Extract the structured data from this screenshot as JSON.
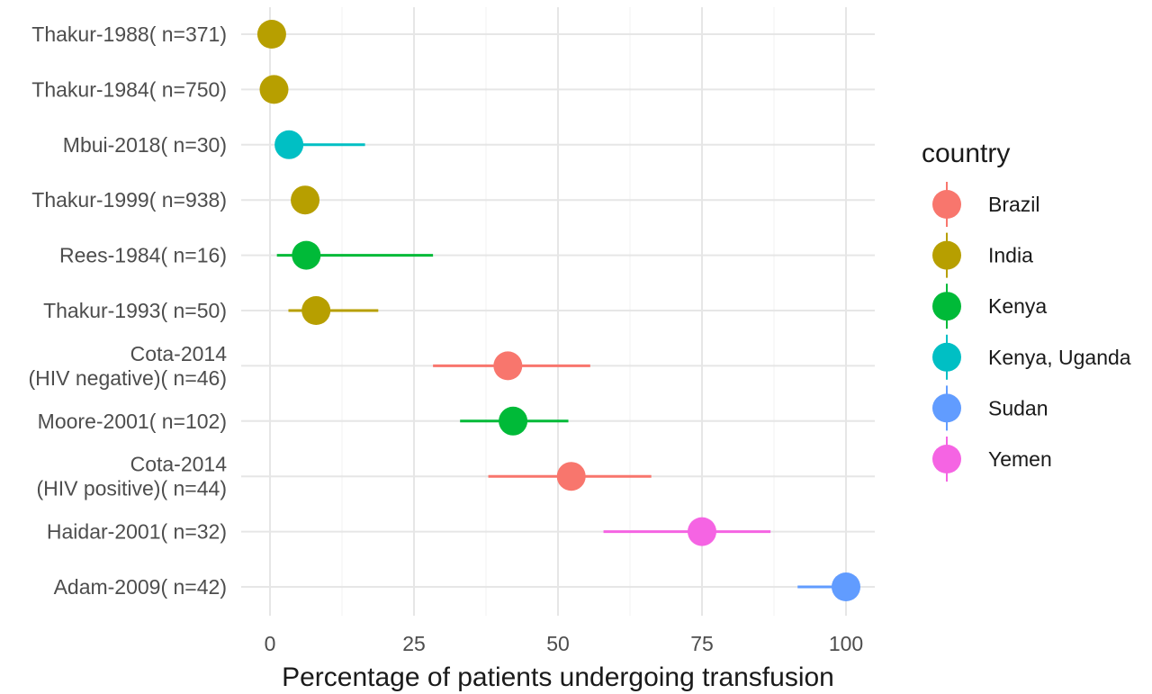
{
  "chart_data": {
    "type": "scatter",
    "title": "",
    "xlabel": "Percentage of patients undergoing transfusion",
    "ylabel": "",
    "xlim": [
      -5,
      105
    ],
    "xticks": [
      0,
      25,
      50,
      75,
      100
    ],
    "grid": true,
    "legend": {
      "title": "country",
      "placement": "right",
      "entries": [
        {
          "label": "Brazil",
          "color": "#F8766D"
        },
        {
          "label": "India",
          "color": "#B79F00"
        },
        {
          "label": "Kenya",
          "color": "#00BA38"
        },
        {
          "label": "Kenya, Uganda",
          "color": "#00BFC4"
        },
        {
          "label": "Sudan",
          "color": "#619CFF"
        },
        {
          "label": "Yemen",
          "color": "#F564E3"
        }
      ]
    },
    "studies": [
      {
        "label": [
          "Thakur-1988( n=371)"
        ],
        "country": "India",
        "value": 0.3,
        "lower": null,
        "upper": null
      },
      {
        "label": [
          "Thakur-1984( n=750)"
        ],
        "country": "India",
        "value": 0.7,
        "lower": null,
        "upper": null
      },
      {
        "label": [
          "Mbui-2018( n=30)"
        ],
        "country": "Kenya, Uganda",
        "value": 3.3,
        "lower": 1.0,
        "upper": 16.5
      },
      {
        "label": [
          "Thakur-1999( n=938)"
        ],
        "country": "India",
        "value": 6.1,
        "lower": null,
        "upper": null
      },
      {
        "label": [
          "Rees-1984( n=16)"
        ],
        "country": "Kenya",
        "value": 6.3,
        "lower": 1.2,
        "upper": 28.3
      },
      {
        "label": [
          "Thakur-1993( n=50)"
        ],
        "country": "India",
        "value": 8.0,
        "lower": 3.2,
        "upper": 18.8
      },
      {
        "label": [
          "Cota-2014",
          "(HIV negative)( n=46)"
        ],
        "country": "Brazil",
        "value": 41.3,
        "lower": 28.3,
        "upper": 55.6
      },
      {
        "label": [
          "Moore-2001( n=102)"
        ],
        "country": "Kenya",
        "value": 42.2,
        "lower": 33.0,
        "upper": 51.8
      },
      {
        "label": [
          "Cota-2014",
          "(HIV positive)( n=44)"
        ],
        "country": "Brazil",
        "value": 52.3,
        "lower": 37.9,
        "upper": 66.2
      },
      {
        "label": [
          "Haidar-2001( n=32)"
        ],
        "country": "Yemen",
        "value": 75.0,
        "lower": 57.9,
        "upper": 86.9
      },
      {
        "label": [
          "Adam-2009( n=42)"
        ],
        "country": "Sudan",
        "value": 100.0,
        "lower": 91.6,
        "upper": 100.0
      }
    ]
  }
}
